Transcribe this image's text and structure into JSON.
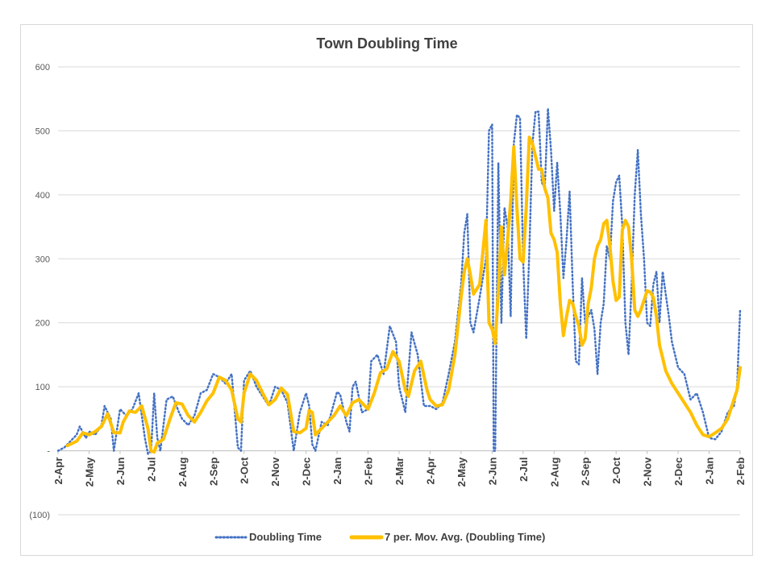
{
  "chart_data": {
    "type": "line",
    "title": "Town Doubling Time",
    "xlabel": "",
    "ylabel": "",
    "ylim": [
      -100,
      600
    ],
    "yticks": [
      -100,
      0,
      100,
      200,
      300,
      400,
      500,
      600
    ],
    "ytick_labels": [
      "(100)",
      "-",
      "100",
      "200",
      "300",
      "400",
      "500",
      "600"
    ],
    "xtick_labels": [
      "2-Apr",
      "2-May",
      "2-Jun",
      "2-Jul",
      "2-Aug",
      "2-Sep",
      "2-Oct",
      "2-Nov",
      "2-Dec",
      "2-Jan",
      "2-Feb",
      "2-Mar",
      "2-Apr",
      "2-May",
      "2-Jun",
      "2-Jul",
      "2-Aug",
      "2-Sep",
      "2-Oct",
      "2-Nov",
      "2-Dec",
      "2-Jan",
      "2-Feb"
    ],
    "grid": true,
    "legend_position": "bottom",
    "series": [
      {
        "name": "Doubling Time",
        "color": "#4472c4",
        "style": "dotted",
        "points": [
          [
            0,
            0
          ],
          [
            0.2,
            5
          ],
          [
            0.4,
            15
          ],
          [
            0.6,
            25
          ],
          [
            0.7,
            38
          ],
          [
            0.9,
            20
          ],
          [
            1.0,
            30
          ],
          [
            1.2,
            25
          ],
          [
            1.4,
            40
          ],
          [
            1.5,
            70
          ],
          [
            1.7,
            50
          ],
          [
            1.8,
            0
          ],
          [
            2.0,
            65
          ],
          [
            2.2,
            55
          ],
          [
            2.4,
            65
          ],
          [
            2.6,
            90
          ],
          [
            2.8,
            20
          ],
          [
            2.9,
            -5
          ],
          [
            3.0,
            0
          ],
          [
            3.1,
            90
          ],
          [
            3.2,
            20
          ],
          [
            3.3,
            0
          ],
          [
            3.5,
            80
          ],
          [
            3.7,
            85
          ],
          [
            3.9,
            60
          ],
          [
            4.0,
            50
          ],
          [
            4.2,
            40
          ],
          [
            4.4,
            55
          ],
          [
            4.6,
            90
          ],
          [
            4.8,
            95
          ],
          [
            5.0,
            120
          ],
          [
            5.2,
            115
          ],
          [
            5.4,
            105
          ],
          [
            5.6,
            120
          ],
          [
            5.8,
            5
          ],
          [
            5.9,
            0
          ],
          [
            6.0,
            110
          ],
          [
            6.2,
            125
          ],
          [
            6.4,
            100
          ],
          [
            6.6,
            85
          ],
          [
            6.8,
            70
          ],
          [
            7.0,
            100
          ],
          [
            7.2,
            95
          ],
          [
            7.4,
            75
          ],
          [
            7.6,
            0
          ],
          [
            7.8,
            60
          ],
          [
            8.0,
            90
          ],
          [
            8.1,
            70
          ],
          [
            8.2,
            10
          ],
          [
            8.3,
            0
          ],
          [
            8.5,
            45
          ],
          [
            8.7,
            40
          ],
          [
            9.0,
            92
          ],
          [
            9.1,
            88
          ],
          [
            9.3,
            45
          ],
          [
            9.4,
            30
          ],
          [
            9.5,
            100
          ],
          [
            9.6,
            108
          ],
          [
            9.8,
            60
          ],
          [
            10.0,
            65
          ],
          [
            10.1,
            140
          ],
          [
            10.3,
            150
          ],
          [
            10.5,
            120
          ],
          [
            10.7,
            195
          ],
          [
            10.9,
            170
          ],
          [
            11.0,
            100
          ],
          [
            11.2,
            60
          ],
          [
            11.4,
            185
          ],
          [
            11.6,
            150
          ],
          [
            11.8,
            70
          ],
          [
            12.0,
            70
          ],
          [
            12.2,
            65
          ],
          [
            12.4,
            75
          ],
          [
            12.6,
            120
          ],
          [
            12.8,
            170
          ],
          [
            13.0,
            260
          ],
          [
            13.1,
            340
          ],
          [
            13.2,
            370
          ],
          [
            13.3,
            200
          ],
          [
            13.4,
            185
          ],
          [
            13.6,
            240
          ],
          [
            13.8,
            300
          ],
          [
            13.9,
            500
          ],
          [
            14.0,
            510
          ],
          [
            14.05,
            0
          ],
          [
            14.1,
            0
          ],
          [
            14.2,
            450
          ],
          [
            14.3,
            200
          ],
          [
            14.4,
            380
          ],
          [
            14.5,
            350
          ],
          [
            14.6,
            210
          ],
          [
            14.7,
            480
          ],
          [
            14.8,
            525
          ],
          [
            14.9,
            520
          ],
          [
            15.0,
            300
          ],
          [
            15.1,
            175
          ],
          [
            15.2,
            310
          ],
          [
            15.3,
            480
          ],
          [
            15.4,
            530
          ],
          [
            15.5,
            530
          ],
          [
            15.6,
            420
          ],
          [
            15.7,
            410
          ],
          [
            15.8,
            535
          ],
          [
            15.9,
            470
          ],
          [
            16.0,
            375
          ],
          [
            16.1,
            450
          ],
          [
            16.2,
            370
          ],
          [
            16.3,
            270
          ],
          [
            16.4,
            330
          ],
          [
            16.5,
            405
          ],
          [
            16.6,
            260
          ],
          [
            16.7,
            140
          ],
          [
            16.8,
            135
          ],
          [
            16.9,
            270
          ],
          [
            17.0,
            200
          ],
          [
            17.1,
            210
          ],
          [
            17.2,
            220
          ],
          [
            17.3,
            190
          ],
          [
            17.4,
            120
          ],
          [
            17.5,
            200
          ],
          [
            17.6,
            230
          ],
          [
            17.7,
            320
          ],
          [
            17.8,
            300
          ],
          [
            17.9,
            390
          ],
          [
            18.0,
            420
          ],
          [
            18.1,
            430
          ],
          [
            18.2,
            350
          ],
          [
            18.3,
            200
          ],
          [
            18.4,
            150
          ],
          [
            18.5,
            260
          ],
          [
            18.6,
            400
          ],
          [
            18.7,
            470
          ],
          [
            18.8,
            370
          ],
          [
            18.9,
            300
          ],
          [
            19.0,
            200
          ],
          [
            19.1,
            195
          ],
          [
            19.2,
            260
          ],
          [
            19.3,
            280
          ],
          [
            19.4,
            200
          ],
          [
            19.5,
            280
          ],
          [
            19.6,
            245
          ],
          [
            19.7,
            210
          ],
          [
            19.8,
            170
          ],
          [
            20.0,
            130
          ],
          [
            20.2,
            120
          ],
          [
            20.4,
            80
          ],
          [
            20.6,
            90
          ],
          [
            20.8,
            60
          ],
          [
            20.9,
            40
          ],
          [
            21.0,
            20
          ],
          [
            21.2,
            18
          ],
          [
            21.4,
            30
          ],
          [
            21.6,
            60
          ],
          [
            21.8,
            70
          ],
          [
            21.9,
            100
          ],
          [
            22.0,
            220
          ]
        ]
      },
      {
        "name": "7 per. Mov. Avg. (Doubling Time)",
        "color": "#ffc000",
        "style": "solid",
        "points": [
          [
            0.3,
            8
          ],
          [
            0.6,
            15
          ],
          [
            0.8,
            28
          ],
          [
            1.0,
            25
          ],
          [
            1.2,
            30
          ],
          [
            1.4,
            38
          ],
          [
            1.6,
            58
          ],
          [
            1.8,
            28
          ],
          [
            2.0,
            28
          ],
          [
            2.1,
            45
          ],
          [
            2.3,
            62
          ],
          [
            2.5,
            60
          ],
          [
            2.7,
            70
          ],
          [
            2.9,
            35
          ],
          [
            3.0,
            0
          ],
          [
            3.1,
            -2
          ],
          [
            3.2,
            12
          ],
          [
            3.4,
            18
          ],
          [
            3.6,
            48
          ],
          [
            3.8,
            75
          ],
          [
            4.0,
            73
          ],
          [
            4.2,
            55
          ],
          [
            4.4,
            45
          ],
          [
            4.6,
            60
          ],
          [
            4.8,
            78
          ],
          [
            5.0,
            90
          ],
          [
            5.2,
            115
          ],
          [
            5.4,
            110
          ],
          [
            5.6,
            95
          ],
          [
            5.8,
            50
          ],
          [
            5.9,
            45
          ],
          [
            6.0,
            90
          ],
          [
            6.2,
            120
          ],
          [
            6.4,
            110
          ],
          [
            6.6,
            90
          ],
          [
            6.8,
            72
          ],
          [
            7.0,
            80
          ],
          [
            7.2,
            98
          ],
          [
            7.4,
            88
          ],
          [
            7.6,
            30
          ],
          [
            7.8,
            28
          ],
          [
            8.0,
            35
          ],
          [
            8.1,
            63
          ],
          [
            8.2,
            60
          ],
          [
            8.3,
            25
          ],
          [
            8.5,
            35
          ],
          [
            8.7,
            45
          ],
          [
            8.9,
            55
          ],
          [
            9.1,
            70
          ],
          [
            9.3,
            55
          ],
          [
            9.5,
            75
          ],
          [
            9.7,
            80
          ],
          [
            9.9,
            70
          ],
          [
            10.0,
            65
          ],
          [
            10.2,
            90
          ],
          [
            10.4,
            122
          ],
          [
            10.6,
            128
          ],
          [
            10.8,
            155
          ],
          [
            11.0,
            140
          ],
          [
            11.2,
            95
          ],
          [
            11.3,
            85
          ],
          [
            11.5,
            125
          ],
          [
            11.7,
            140
          ],
          [
            11.9,
            95
          ],
          [
            12.0,
            80
          ],
          [
            12.2,
            70
          ],
          [
            12.4,
            72
          ],
          [
            12.6,
            95
          ],
          [
            12.8,
            150
          ],
          [
            13.0,
            240
          ],
          [
            13.1,
            280
          ],
          [
            13.2,
            300
          ],
          [
            13.3,
            275
          ],
          [
            13.4,
            245
          ],
          [
            13.6,
            260
          ],
          [
            13.8,
            360
          ],
          [
            13.9,
            200
          ],
          [
            14.0,
            190
          ],
          [
            14.1,
            168
          ],
          [
            14.2,
            250
          ],
          [
            14.3,
            350
          ],
          [
            14.4,
            275
          ],
          [
            14.5,
            330
          ],
          [
            14.6,
            390
          ],
          [
            14.7,
            475
          ],
          [
            14.8,
            380
          ],
          [
            14.9,
            300
          ],
          [
            15.0,
            295
          ],
          [
            15.1,
            380
          ],
          [
            15.2,
            490
          ],
          [
            15.3,
            480
          ],
          [
            15.4,
            460
          ],
          [
            15.5,
            440
          ],
          [
            15.6,
            440
          ],
          [
            15.7,
            410
          ],
          [
            15.8,
            395
          ],
          [
            15.9,
            340
          ],
          [
            16.0,
            330
          ],
          [
            16.1,
            310
          ],
          [
            16.2,
            230
          ],
          [
            16.3,
            180
          ],
          [
            16.4,
            210
          ],
          [
            16.5,
            235
          ],
          [
            16.6,
            230
          ],
          [
            16.7,
            210
          ],
          [
            16.8,
            195
          ],
          [
            16.9,
            165
          ],
          [
            17.0,
            175
          ],
          [
            17.1,
            230
          ],
          [
            17.2,
            255
          ],
          [
            17.3,
            300
          ],
          [
            17.4,
            320
          ],
          [
            17.5,
            330
          ],
          [
            17.6,
            355
          ],
          [
            17.7,
            360
          ],
          [
            17.8,
            320
          ],
          [
            17.9,
            265
          ],
          [
            18.0,
            235
          ],
          [
            18.1,
            240
          ],
          [
            18.2,
            345
          ],
          [
            18.3,
            360
          ],
          [
            18.4,
            350
          ],
          [
            18.5,
            300
          ],
          [
            18.6,
            220
          ],
          [
            18.7,
            210
          ],
          [
            18.8,
            220
          ],
          [
            18.9,
            235
          ],
          [
            19.0,
            250
          ],
          [
            19.1,
            248
          ],
          [
            19.2,
            240
          ],
          [
            19.3,
            210
          ],
          [
            19.4,
            165
          ],
          [
            19.5,
            145
          ],
          [
            19.6,
            125
          ],
          [
            19.8,
            105
          ],
          [
            20.0,
            90
          ],
          [
            20.2,
            75
          ],
          [
            20.4,
            60
          ],
          [
            20.6,
            40
          ],
          [
            20.8,
            25
          ],
          [
            21.0,
            22
          ],
          [
            21.2,
            28
          ],
          [
            21.4,
            35
          ],
          [
            21.6,
            50
          ],
          [
            21.8,
            80
          ],
          [
            21.9,
            95
          ],
          [
            22.0,
            130
          ]
        ]
      }
    ]
  }
}
